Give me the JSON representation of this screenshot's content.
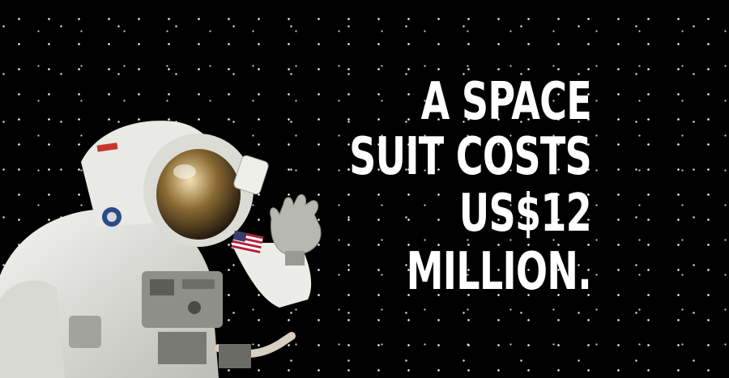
{
  "headline": {
    "line1": "A SPACE SUIT COSTS",
    "line2": "US$12 MILLION."
  },
  "colors": {
    "background": "#000000",
    "text": "#ffffff",
    "suit": "#e6e6e2"
  },
  "image": {
    "subject": "astronaut-in-white-space-suit-waving",
    "patch": "us-flag-patch"
  }
}
